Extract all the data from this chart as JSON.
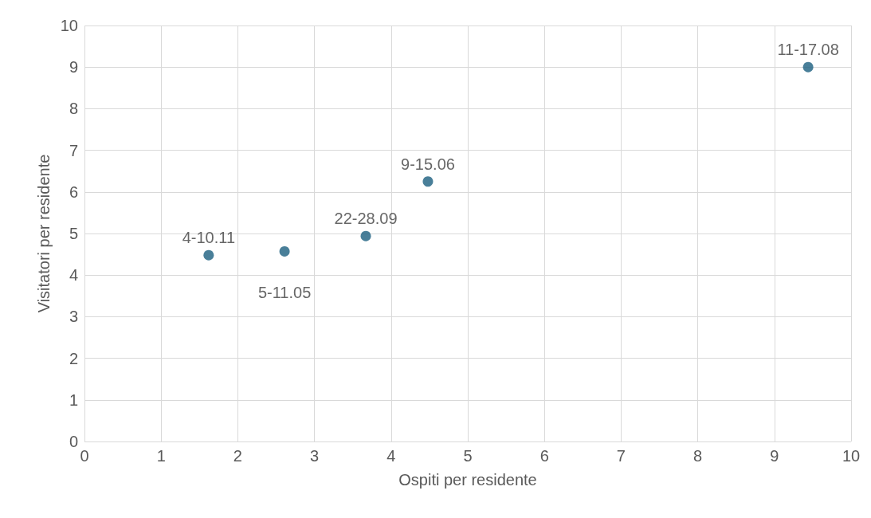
{
  "chart_data": {
    "type": "scatter",
    "xlabel": "Ospiti per residente",
    "ylabel": "Visitatori per residente",
    "x": [
      1.62,
      2.61,
      3.67,
      4.48,
      9.44
    ],
    "values": [
      4.48,
      4.57,
      4.94,
      6.25,
      9.0
    ],
    "color": "#1b5f80",
    "marker": "circle",
    "grid": true,
    "xlim": [
      0,
      10
    ],
    "xticks": [
      0,
      1,
      2,
      3,
      4,
      5,
      6,
      7,
      8,
      9,
      10
    ],
    "ylim": [
      0,
      10
    ],
    "yticks": [
      0,
      1,
      2,
      3,
      4,
      5,
      6,
      7,
      8,
      9,
      10
    ],
    "annotations": [
      {
        "text": "4-10.11",
        "x": 1.62,
        "y": 4.48
      },
      {
        "text": "5-11.05",
        "x": 2.61,
        "y": 4.57
      },
      {
        "text": "22-28.09",
        "x": 3.67,
        "y": 4.94
      },
      {
        "text": "9-15.06",
        "x": 4.48,
        "y": 6.25
      },
      {
        "text": "11-17.08",
        "x": 9.44,
        "y": 9.0
      }
    ]
  }
}
